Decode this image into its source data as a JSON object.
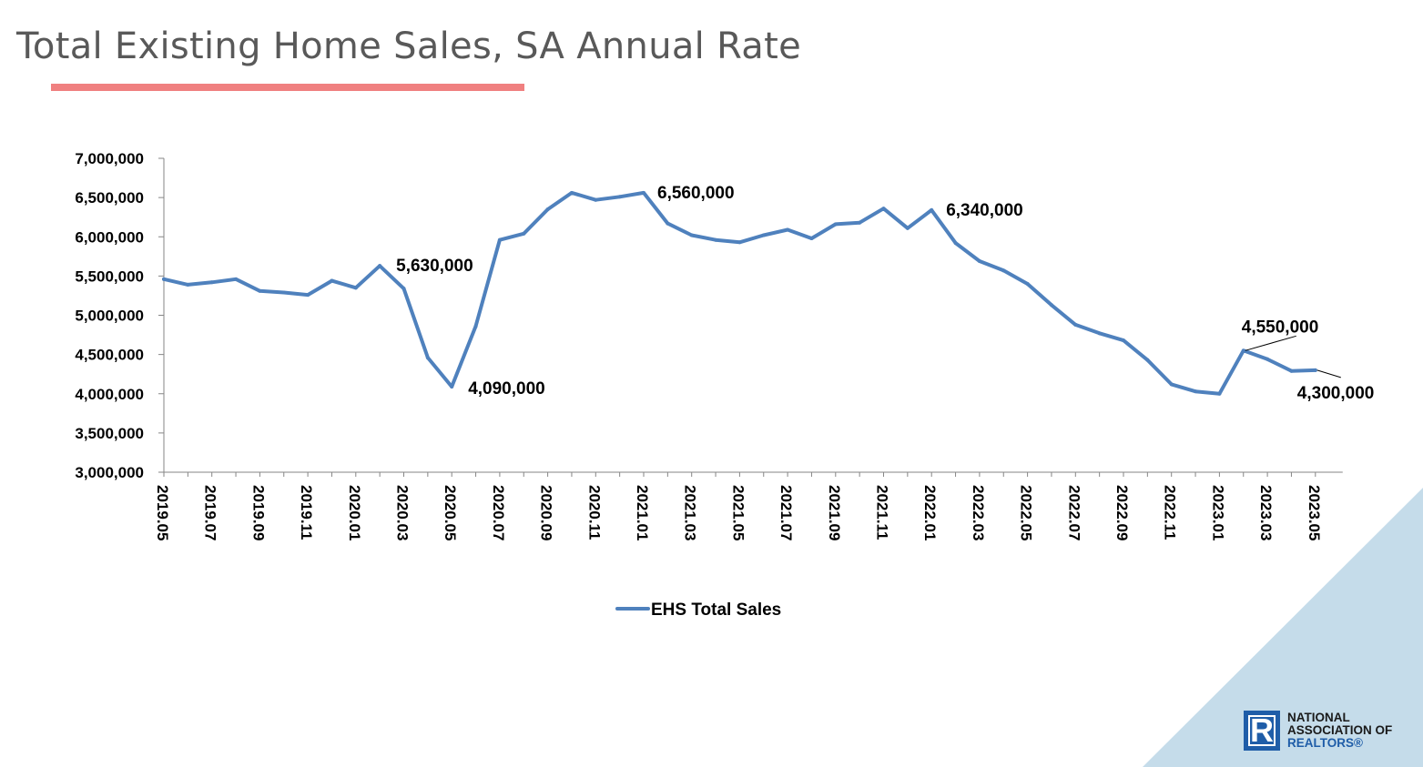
{
  "slide": {
    "title": "Total Existing Home Sales, SA Annual Rate",
    "underline_color": "#f08080"
  },
  "logo": {
    "mark": "R",
    "line1": "NATIONAL",
    "line2": "ASSOCIATION OF",
    "line3": "REALTORS®"
  },
  "colors": {
    "series": "#4f81bd",
    "corner": "#c5dcea",
    "logo_blue": "#1f5da8"
  },
  "chart_data": {
    "type": "line",
    "ylim": [
      3000000,
      7000000
    ],
    "yticks": [
      3000000,
      3500000,
      4000000,
      4500000,
      5000000,
      5500000,
      6000000,
      6500000,
      7000000
    ],
    "ytick_labels": [
      "3,000,000",
      "3,500,000",
      "4,000,000",
      "4,500,000",
      "5,000,000",
      "5,500,000",
      "6,000,000",
      "6,500,000",
      "7,000,000"
    ],
    "x": [
      "2019.05",
      "2019.06",
      "2019.07",
      "2019.08",
      "2019.09",
      "2019.10",
      "2019.11",
      "2019.12",
      "2020.01",
      "2020.02",
      "2020.03",
      "2020.04",
      "2020.05",
      "2020.06",
      "2020.07",
      "2020.08",
      "2020.09",
      "2020.10",
      "2020.11",
      "2020.12",
      "2021.01",
      "2021.02",
      "2021.03",
      "2021.04",
      "2021.05",
      "2021.06",
      "2021.07",
      "2021.08",
      "2021.09",
      "2021.10",
      "2021.11",
      "2021.12",
      "2022.01",
      "2022.02",
      "2022.03",
      "2022.04",
      "2022.05",
      "2022.06",
      "2022.07",
      "2022.08",
      "2022.09",
      "2022.10",
      "2022.11",
      "2022.12",
      "2023.01",
      "2023.02",
      "2023.03",
      "2023.04",
      "2023.05"
    ],
    "xtick_labels": [
      "2019.05",
      "2019.07",
      "2019.09",
      "2019.11",
      "2020.01",
      "2020.03",
      "2020.05",
      "2020.07",
      "2020.09",
      "2020.11",
      "2021.01",
      "2021.03",
      "2021.05",
      "2021.07",
      "2021.09",
      "2021.11",
      "2022.01",
      "2022.03",
      "2022.05",
      "2022.07",
      "2022.09",
      "2022.11",
      "2023.01",
      "2023.03",
      "2023.05"
    ],
    "series": [
      {
        "name": "EHS Total Sales",
        "values": [
          5460000,
          5390000,
          5420000,
          5460000,
          5310000,
          5290000,
          5260000,
          5440000,
          5350000,
          5630000,
          5340000,
          4460000,
          4090000,
          4860000,
          5960000,
          6040000,
          6350000,
          6560000,
          6470000,
          6510000,
          6560000,
          6170000,
          6020000,
          5960000,
          5930000,
          6020000,
          6090000,
          5980000,
          6160000,
          6180000,
          6360000,
          6110000,
          6340000,
          5920000,
          5690000,
          5570000,
          5400000,
          5130000,
          4880000,
          4770000,
          4680000,
          4430000,
          4120000,
          4030000,
          4000000,
          4550000,
          4440000,
          4290000,
          4300000
        ]
      }
    ],
    "annotations": [
      {
        "index": 9,
        "label": "5,630,000"
      },
      {
        "index": 12,
        "label": "4,090,000"
      },
      {
        "index": 20,
        "label": "6,560,000"
      },
      {
        "index": 32,
        "label": "6,340,000"
      },
      {
        "index": 45,
        "label": "4,550,000"
      },
      {
        "index": 48,
        "label": "4,300,000"
      }
    ],
    "grid": false,
    "legend": "bottom-center"
  }
}
